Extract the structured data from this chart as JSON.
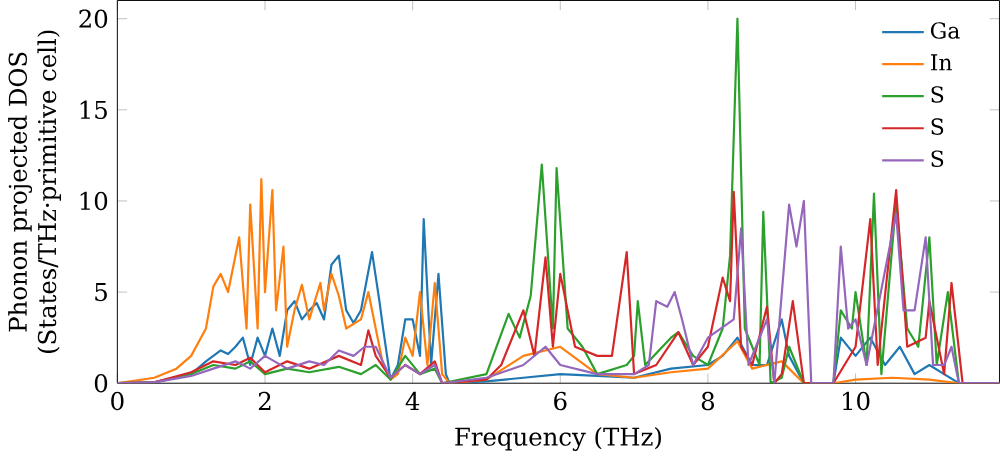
{
  "chart_data": {
    "type": "line",
    "xlabel": "Frequency (THz)",
    "ylabel": "Phonon projected DOS\n(States/THz·primitive cell)",
    "xlim": [
      0,
      11.95
    ],
    "ylim": [
      0,
      21
    ],
    "xticks": [
      0,
      2,
      4,
      6,
      8,
      10
    ],
    "yticks": [
      0,
      5,
      10,
      15,
      20
    ],
    "legend": "top right",
    "grid": false,
    "marker": "none",
    "line_style": "solid",
    "series": [
      {
        "name": "Ga",
        "color": "#1f77b4",
        "x": [
          0,
          0.5,
          1.0,
          1.2,
          1.4,
          1.5,
          1.6,
          1.7,
          1.8,
          1.9,
          2.0,
          2.1,
          2.2,
          2.3,
          2.4,
          2.5,
          2.6,
          2.7,
          2.8,
          2.9,
          3.0,
          3.1,
          3.2,
          3.3,
          3.45,
          3.55,
          3.6,
          3.7,
          3.8,
          3.9,
          4.0,
          4.1,
          4.15,
          4.25,
          4.35,
          4.45,
          4.5,
          5.0,
          5.5,
          6.0,
          6.5,
          7.0,
          7.5,
          8.0,
          8.2,
          8.4,
          8.6,
          8.8,
          9.0,
          9.1,
          9.3,
          9.7,
          9.8,
          10.0,
          10.2,
          10.4,
          10.6,
          10.8,
          11.0,
          11.2,
          11.4,
          11.95
        ],
        "values": [
          0,
          0.05,
          0.5,
          1.2,
          1.8,
          1.6,
          2.0,
          2.5,
          1.0,
          2.5,
          1.5,
          3.0,
          1.5,
          4.0,
          4.5,
          3.5,
          4.0,
          4.4,
          3.5,
          6.5,
          7.0,
          4.0,
          3.3,
          4.0,
          7.2,
          4.5,
          3.0,
          0.2,
          1.0,
          3.5,
          3.5,
          1.5,
          9.0,
          1.0,
          6.0,
          0.5,
          0,
          0.1,
          0.3,
          0.5,
          0.4,
          0.3,
          0.8,
          1.0,
          1.5,
          2.5,
          1.0,
          1.0,
          3.5,
          1.5,
          0,
          0,
          2.5,
          1.5,
          2.5,
          1.0,
          2.0,
          0.5,
          1.0,
          0.5,
          0,
          0
        ]
      },
      {
        "name": "In",
        "color": "#ff7f0e",
        "x": [
          0,
          0.5,
          0.8,
          1.0,
          1.2,
          1.3,
          1.4,
          1.5,
          1.65,
          1.75,
          1.8,
          1.9,
          1.95,
          2.0,
          2.1,
          2.15,
          2.25,
          2.3,
          2.4,
          2.5,
          2.6,
          2.75,
          2.8,
          2.9,
          3.0,
          3.1,
          3.3,
          3.4,
          3.5,
          3.6,
          3.7,
          3.8,
          3.9,
          4.0,
          4.1,
          4.2,
          4.3,
          4.4,
          4.5,
          5.0,
          5.5,
          6.0,
          6.5,
          7.0,
          7.5,
          8.0,
          8.4,
          8.6,
          9.0,
          9.3,
          9.7,
          10.0,
          10.5,
          11.0,
          11.4,
          11.95
        ],
        "values": [
          0,
          0.3,
          0.8,
          1.5,
          3.0,
          5.3,
          6.0,
          5.0,
          8.0,
          3.0,
          9.8,
          3.0,
          11.2,
          5.0,
          10.6,
          4.0,
          7.5,
          2.0,
          4.0,
          5.4,
          3.5,
          5.5,
          4.0,
          6.0,
          4.8,
          3.0,
          3.5,
          5.0,
          3.0,
          1.0,
          0.2,
          0.5,
          2.5,
          1.5,
          5.0,
          1.0,
          5.5,
          0.5,
          0,
          0.2,
          1.5,
          2.0,
          0.5,
          0.3,
          0.6,
          0.8,
          2.3,
          0.8,
          1.2,
          0,
          0,
          0.2,
          0.3,
          0.2,
          0,
          0
        ]
      },
      {
        "name": "S",
        "color": "#2ca02c",
        "x": [
          0,
          0.5,
          1.0,
          1.3,
          1.6,
          1.8,
          2.0,
          2.3,
          2.6,
          3.0,
          3.3,
          3.5,
          3.7,
          3.9,
          4.1,
          4.3,
          4.4,
          5.0,
          5.3,
          5.45,
          5.6,
          5.75,
          5.9,
          5.95,
          6.1,
          6.3,
          6.5,
          6.9,
          7.0,
          7.05,
          7.15,
          7.5,
          7.6,
          7.8,
          8.0,
          8.2,
          8.3,
          8.4,
          8.5,
          8.7,
          8.75,
          8.85,
          9.0,
          9.1,
          9.3,
          9.7,
          9.8,
          9.95,
          10.0,
          10.15,
          10.25,
          10.35,
          10.55,
          10.7,
          10.85,
          11.0,
          11.1,
          11.25,
          11.4,
          11.95
        ],
        "values": [
          0,
          0.05,
          0.5,
          1.0,
          0.8,
          1.2,
          0.5,
          0.8,
          0.6,
          0.9,
          0.5,
          1.0,
          0.2,
          1.5,
          0.5,
          0.8,
          0,
          0.5,
          3.8,
          2.5,
          4.8,
          12.0,
          3.0,
          11.8,
          3.0,
          2.0,
          0.5,
          1.0,
          1.5,
          4.5,
          1.0,
          2.5,
          2.8,
          1.5,
          1.0,
          3.0,
          7.0,
          20.0,
          3.0,
          1.0,
          9.4,
          0,
          0.3,
          2.0,
          0,
          0,
          4.0,
          3.0,
          5.0,
          1.0,
          10.4,
          0.5,
          10.0,
          3.0,
          2.0,
          8.0,
          1.0,
          5.0,
          0,
          0
        ]
      },
      {
        "name": "S",
        "color": "#d62728",
        "x": [
          0,
          0.5,
          1.0,
          1.3,
          1.6,
          1.8,
          2.0,
          2.3,
          2.6,
          3.0,
          3.3,
          3.4,
          3.5,
          3.7,
          3.9,
          4.1,
          4.3,
          4.4,
          5.0,
          5.2,
          5.5,
          5.65,
          5.8,
          5.9,
          6.0,
          6.2,
          6.5,
          6.7,
          6.9,
          7.0,
          7.3,
          7.6,
          7.8,
          8.0,
          8.2,
          8.3,
          8.35,
          8.45,
          8.6,
          8.8,
          8.9,
          9.0,
          9.15,
          9.3,
          9.7,
          10.0,
          10.2,
          10.3,
          10.55,
          10.7,
          10.95,
          11.0,
          11.2,
          11.3,
          11.45,
          11.95
        ],
        "values": [
          0,
          0.05,
          0.6,
          1.2,
          1.0,
          1.4,
          0.6,
          1.2,
          0.8,
          1.5,
          1.0,
          2.9,
          1.5,
          0.3,
          1.0,
          0.5,
          1.2,
          0,
          0.2,
          1.0,
          4.0,
          1.5,
          6.9,
          2.0,
          6.0,
          2.0,
          1.5,
          1.5,
          7.2,
          0.5,
          1.0,
          2.8,
          1.0,
          2.0,
          5.8,
          4.5,
          10.5,
          2.0,
          1.0,
          4.2,
          0,
          0.5,
          4.5,
          0,
          0,
          2.0,
          9.0,
          1.0,
          10.6,
          2.0,
          2.5,
          4.5,
          0.5,
          5.5,
          0,
          0
        ]
      },
      {
        "name": "S",
        "color": "#9467bd",
        "x": [
          0,
          0.5,
          1.0,
          1.3,
          1.6,
          1.8,
          2.0,
          2.3,
          2.6,
          2.8,
          3.0,
          3.2,
          3.35,
          3.5,
          3.7,
          3.9,
          4.1,
          4.3,
          4.4,
          5.0,
          5.5,
          5.8,
          6.0,
          6.5,
          7.0,
          7.2,
          7.3,
          7.45,
          7.55,
          7.65,
          7.8,
          8.0,
          8.35,
          8.45,
          8.55,
          8.8,
          8.9,
          9.1,
          9.2,
          9.3,
          9.4,
          9.7,
          9.8,
          9.9,
          10.0,
          10.15,
          10.55,
          10.65,
          10.8,
          10.95,
          11.05,
          11.2,
          11.3,
          11.4,
          11.95
        ],
        "values": [
          0,
          0.05,
          0.4,
          0.8,
          1.2,
          0.8,
          1.5,
          0.8,
          1.2,
          1.0,
          1.8,
          1.5,
          2.0,
          2.0,
          0.3,
          1.0,
          0.5,
          1.0,
          0,
          0.3,
          1.0,
          2.0,
          1.0,
          0.5,
          0.5,
          1.0,
          4.5,
          4.2,
          5.0,
          3.5,
          1.0,
          2.5,
          3.5,
          8.5,
          1.0,
          3.5,
          0,
          9.8,
          7.5,
          10.0,
          0,
          0,
          7.5,
          3.0,
          3.5,
          1.0,
          9.3,
          4.0,
          4.0,
          8.0,
          1.0,
          1.0,
          2.0,
          0,
          0
        ]
      }
    ]
  }
}
